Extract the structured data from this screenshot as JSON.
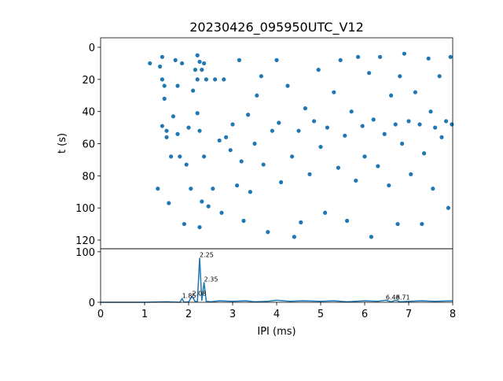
{
  "chart_data": [
    {
      "type": "scatter",
      "title": "20230426_095950UTC_V12",
      "y_label": "t (s)",
      "xlim": [
        0,
        8
      ],
      "ylim": [
        125.4,
        -5.9
      ],
      "yticks": [
        0,
        20,
        40,
        60,
        80,
        100,
        120
      ],
      "series": [
        {
          "color": "#1f77b4",
          "x": [
            1.12,
            1.3,
            1.35,
            1.4,
            1.4,
            1.45,
            1.45,
            1.4,
            1.5,
            1.5,
            1.55,
            1.6,
            1.65,
            1.7,
            1.75,
            1.75,
            1.8,
            1.85,
            1.9,
            1.95,
            2.0,
            2.05,
            2.1,
            2.15,
            2.2,
            2.2,
            2.2,
            2.25,
            2.25,
            2.25,
            2.3,
            2.3,
            2.35,
            2.35,
            2.4,
            2.45,
            2.55,
            2.6,
            2.7,
            2.75,
            2.8,
            2.85,
            2.95,
            3.0,
            3.1,
            3.15,
            3.2,
            3.25,
            3.35,
            3.4,
            3.5,
            3.55,
            3.65,
            3.7,
            3.8,
            3.9,
            4.0,
            4.05,
            4.1,
            4.25,
            4.35,
            4.4,
            4.5,
            4.55,
            4.65,
            4.75,
            4.85,
            4.95,
            5.0,
            5.1,
            5.15,
            5.3,
            5.4,
            5.45,
            5.55,
            5.6,
            5.7,
            5.8,
            5.85,
            5.95,
            6.0,
            6.1,
            6.15,
            6.2,
            6.3,
            6.35,
            6.45,
            6.55,
            6.6,
            6.7,
            6.75,
            6.8,
            6.85,
            6.9,
            7.0,
            7.05,
            7.15,
            7.25,
            7.3,
            7.35,
            7.45,
            7.5,
            7.55,
            7.6,
            7.7,
            7.75,
            7.85,
            7.9,
            7.95,
            7.98
          ],
          "values": [
            10,
            88,
            12,
            6,
            20,
            24,
            32,
            49,
            52,
            56,
            97,
            68,
            43,
            8,
            24,
            54,
            68,
            10,
            110,
            73,
            50,
            88,
            27,
            14,
            5,
            20,
            41,
            9,
            52,
            112,
            14,
            96,
            10,
            68,
            20,
            99,
            88,
            20,
            58,
            103,
            20,
            56,
            64,
            48,
            86,
            8,
            71,
            108,
            42,
            90,
            60,
            30,
            18,
            73,
            115,
            52,
            8,
            47,
            84,
            24,
            68,
            118,
            52,
            109,
            38,
            79,
            46,
            14,
            62,
            103,
            50,
            28,
            75,
            8,
            55,
            108,
            40,
            83,
            6,
            49,
            68,
            16,
            118,
            45,
            74,
            6,
            54,
            86,
            30,
            48,
            110,
            18,
            60,
            4,
            46,
            79,
            28,
            48,
            110,
            66,
            7,
            40,
            88,
            50,
            18,
            56,
            46,
            100,
            6,
            48
          ]
        }
      ]
    },
    {
      "type": "line",
      "x_label": "IPI (ms)",
      "xlim": [
        0,
        8
      ],
      "xticks": [
        0,
        1,
        2,
        3,
        4,
        5,
        6,
        7,
        8
      ],
      "ylim": [
        0,
        106
      ],
      "yticks": [
        0,
        100
      ],
      "series": [
        {
          "color": "#1f77b4",
          "x": [
            0,
            1.0,
            1.5,
            1.8,
            1.85,
            1.9,
            2.0,
            2.08,
            2.15,
            2.2,
            2.25,
            2.3,
            2.35,
            2.4,
            2.5,
            2.7,
            3.0,
            3.3,
            3.5,
            3.8,
            4.0,
            4.3,
            4.6,
            5.0,
            5.3,
            5.6,
            6.0,
            6.3,
            6.48,
            6.6,
            6.71,
            6.8,
            7.0,
            7.3,
            7.6,
            8.0
          ],
          "values": [
            0,
            0,
            1,
            0,
            7,
            0,
            1,
            12,
            1,
            2,
            88,
            3,
            40,
            2,
            1,
            3,
            2,
            3,
            1,
            2,
            4,
            2,
            3,
            2,
            3,
            1,
            3,
            2,
            4,
            1,
            4,
            1,
            2,
            3,
            2,
            3
          ]
        }
      ],
      "annotations": [
        {
          "x": 1.85,
          "y": 7
        },
        {
          "x": 2.08,
          "y": 12
        },
        {
          "x": 2.25,
          "y": 88
        },
        {
          "x": 2.35,
          "y": 40
        },
        {
          "x": 6.48,
          "y": 4
        },
        {
          "x": 6.71,
          "y": 4
        }
      ]
    }
  ]
}
